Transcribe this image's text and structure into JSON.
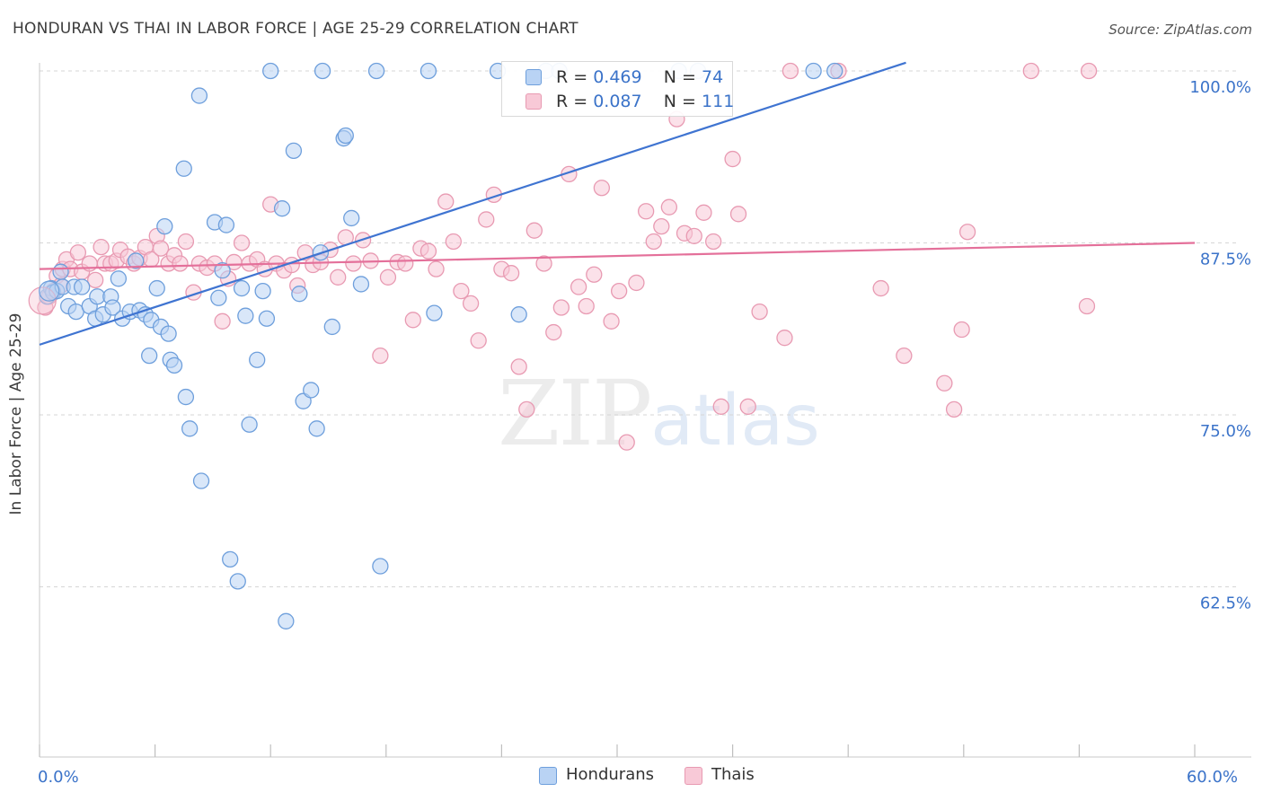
{
  "header": {
    "title": "HONDURAN VS THAI IN LABOR FORCE | AGE 25-29 CORRELATION CHART",
    "source": "Source: ZipAtlas.com"
  },
  "watermark": {
    "zip": "ZIP",
    "atlas": "atlas"
  },
  "legend": {
    "r_label": "R =",
    "n_label": "N =",
    "hondurans": {
      "r": "0.469",
      "n": "74"
    },
    "thais": {
      "r": "0.087",
      "n": "111"
    }
  },
  "bottom_legend": {
    "hondurans": "Hondurans",
    "thais": "Thais"
  },
  "colors": {
    "hondurans_fill": "#b9d3f4",
    "hondurans_stroke": "#6e9fdc",
    "hondurans_line": "#3f74d1",
    "thais_fill": "#f8c9d7",
    "thais_stroke": "#e89ab2",
    "thais_line": "#e4709a",
    "axis_label": "#3b73c9",
    "grid": "#d6d6d6"
  },
  "chart_data": {
    "type": "scatter",
    "title": "HONDURAN VS THAI IN LABOR FORCE | AGE 25-29 CORRELATION CHART",
    "xlabel": "",
    "ylabel": "In Labor Force | Age 25-29",
    "xlim": [
      0,
      60
    ],
    "ylim": [
      50.7,
      100.6
    ],
    "x_tick_labels": [
      {
        "value": 0,
        "label": "0.0%"
      },
      {
        "value": 60,
        "label": "60.0%"
      }
    ],
    "y_tick_labels": [
      {
        "value": 100,
        "label": "100.0%"
      },
      {
        "value": 87.5,
        "label": "87.5%"
      },
      {
        "value": 75,
        "label": "75.0%"
      },
      {
        "value": 62.5,
        "label": "62.5%"
      }
    ],
    "x_minor_ticks": [
      6,
      12,
      18,
      24,
      30,
      36,
      42,
      48,
      54
    ],
    "grid": "horizontal dashed",
    "legend_position": "top-center",
    "series": [
      {
        "name": "Hondurans",
        "r": 0.469,
        "n": 74,
        "trend": {
          "x": [
            0,
            45
          ],
          "y": [
            80.1,
            100.6
          ]
        },
        "points": [
          [
            0.4,
            83.6
          ],
          [
            0.6,
            84.2
          ],
          [
            0.7,
            83.9
          ],
          [
            0.9,
            84.0
          ],
          [
            1.1,
            85.4
          ],
          [
            1.2,
            84.3
          ],
          [
            1.5,
            82.9
          ],
          [
            1.8,
            84.3
          ],
          [
            1.9,
            82.5
          ],
          [
            2.2,
            84.3
          ],
          [
            2.6,
            82.9
          ],
          [
            2.9,
            82.0
          ],
          [
            3.0,
            83.6
          ],
          [
            3.3,
            82.3
          ],
          [
            3.7,
            83.6
          ],
          [
            3.8,
            82.8
          ],
          [
            4.1,
            84.9
          ],
          [
            4.3,
            82.0
          ],
          [
            4.7,
            82.5
          ],
          [
            5.0,
            86.2
          ],
          [
            5.2,
            82.6
          ],
          [
            5.5,
            82.3
          ],
          [
            5.7,
            79.3
          ],
          [
            5.8,
            81.9
          ],
          [
            6.1,
            84.2
          ],
          [
            6.3,
            81.4
          ],
          [
            6.5,
            88.7
          ],
          [
            6.7,
            80.9
          ],
          [
            6.8,
            79.0
          ],
          [
            7.0,
            78.6
          ],
          [
            7.5,
            92.9
          ],
          [
            7.6,
            76.3
          ],
          [
            7.8,
            74.0
          ],
          [
            8.3,
            98.2
          ],
          [
            8.4,
            70.2
          ],
          [
            9.1,
            89.0
          ],
          [
            9.3,
            83.5
          ],
          [
            9.5,
            85.5
          ],
          [
            9.7,
            88.8
          ],
          [
            9.9,
            64.5
          ],
          [
            10.3,
            62.9
          ],
          [
            10.5,
            84.2
          ],
          [
            10.7,
            82.2
          ],
          [
            10.9,
            74.3
          ],
          [
            11.3,
            79.0
          ],
          [
            11.6,
            84.0
          ],
          [
            11.8,
            82.0
          ],
          [
            12.0,
            100.0
          ],
          [
            12.6,
            90.0
          ],
          [
            12.8,
            60.0
          ],
          [
            13.2,
            94.2
          ],
          [
            13.5,
            83.8
          ],
          [
            13.7,
            76.0
          ],
          [
            14.1,
            76.8
          ],
          [
            14.4,
            74.0
          ],
          [
            14.6,
            86.8
          ],
          [
            14.7,
            100.0
          ],
          [
            15.2,
            81.4
          ],
          [
            15.8,
            95.1
          ],
          [
            15.9,
            95.3
          ],
          [
            16.2,
            89.3
          ],
          [
            16.7,
            84.5
          ],
          [
            17.5,
            100.0
          ],
          [
            17.7,
            64.0
          ],
          [
            20.2,
            100.0
          ],
          [
            20.5,
            82.4
          ],
          [
            23.8,
            100.0
          ],
          [
            24.9,
            82.3
          ],
          [
            26.3,
            100.0
          ],
          [
            27.0,
            100.0
          ],
          [
            33.2,
            100.0
          ],
          [
            34.2,
            100.0
          ],
          [
            40.2,
            100.0
          ],
          [
            41.3,
            100.0
          ]
        ]
      },
      {
        "name": "Thais",
        "r": 0.087,
        "n": 111,
        "trend": {
          "x": [
            0,
            60
          ],
          "y": [
            85.6,
            87.5
          ]
        },
        "points": [
          [
            0.3,
            82.8
          ],
          [
            0.5,
            83.6
          ],
          [
            0.7,
            84.0
          ],
          [
            0.9,
            85.1
          ],
          [
            1.1,
            84.4
          ],
          [
            1.2,
            85.6
          ],
          [
            1.4,
            86.3
          ],
          [
            1.6,
            85.6
          ],
          [
            2.0,
            86.8
          ],
          [
            2.2,
            85.4
          ],
          [
            2.6,
            86.0
          ],
          [
            2.9,
            84.8
          ],
          [
            3.2,
            87.2
          ],
          [
            3.4,
            86.0
          ],
          [
            3.7,
            86.0
          ],
          [
            4.0,
            86.2
          ],
          [
            4.2,
            87.0
          ],
          [
            4.6,
            86.5
          ],
          [
            4.9,
            86.0
          ],
          [
            5.2,
            86.4
          ],
          [
            5.5,
            87.2
          ],
          [
            5.8,
            86.3
          ],
          [
            6.1,
            88.0
          ],
          [
            6.3,
            87.1
          ],
          [
            6.7,
            86.0
          ],
          [
            7.0,
            86.6
          ],
          [
            7.3,
            86.0
          ],
          [
            7.6,
            87.6
          ],
          [
            8.0,
            83.9
          ],
          [
            8.3,
            86.0
          ],
          [
            8.7,
            85.7
          ],
          [
            9.1,
            86.0
          ],
          [
            9.5,
            81.8
          ],
          [
            9.8,
            84.9
          ],
          [
            10.1,
            86.1
          ],
          [
            10.5,
            87.5
          ],
          [
            10.9,
            86.0
          ],
          [
            11.3,
            86.3
          ],
          [
            11.7,
            85.6
          ],
          [
            12.0,
            90.3
          ],
          [
            12.3,
            86.0
          ],
          [
            12.7,
            85.5
          ],
          [
            13.1,
            85.9
          ],
          [
            13.4,
            84.4
          ],
          [
            13.8,
            86.8
          ],
          [
            14.2,
            85.9
          ],
          [
            14.6,
            86.1
          ],
          [
            15.1,
            87.0
          ],
          [
            15.5,
            85.0
          ],
          [
            15.9,
            87.9
          ],
          [
            16.3,
            86.0
          ],
          [
            16.8,
            87.7
          ],
          [
            17.2,
            86.2
          ],
          [
            17.7,
            79.3
          ],
          [
            18.1,
            85.0
          ],
          [
            18.6,
            86.1
          ],
          [
            19.0,
            86.0
          ],
          [
            19.4,
            81.9
          ],
          [
            19.8,
            87.1
          ],
          [
            20.2,
            86.9
          ],
          [
            20.6,
            85.6
          ],
          [
            21.1,
            90.5
          ],
          [
            21.5,
            87.6
          ],
          [
            21.9,
            84.0
          ],
          [
            22.4,
            83.1
          ],
          [
            22.8,
            80.4
          ],
          [
            23.2,
            89.2
          ],
          [
            23.6,
            91.0
          ],
          [
            24.0,
            85.6
          ],
          [
            24.5,
            85.3
          ],
          [
            24.9,
            78.5
          ],
          [
            25.3,
            75.4
          ],
          [
            25.7,
            88.4
          ],
          [
            26.2,
            86.0
          ],
          [
            26.7,
            81.0
          ],
          [
            27.1,
            82.8
          ],
          [
            27.5,
            92.5
          ],
          [
            28.0,
            84.3
          ],
          [
            28.4,
            82.9
          ],
          [
            28.8,
            85.2
          ],
          [
            29.2,
            91.5
          ],
          [
            29.7,
            81.8
          ],
          [
            30.1,
            84.0
          ],
          [
            30.5,
            73.0
          ],
          [
            31.0,
            84.6
          ],
          [
            31.5,
            89.8
          ],
          [
            31.9,
            87.6
          ],
          [
            32.3,
            88.7
          ],
          [
            32.7,
            90.1
          ],
          [
            33.1,
            96.5
          ],
          [
            33.5,
            88.2
          ],
          [
            34.0,
            88.0
          ],
          [
            34.5,
            89.7
          ],
          [
            35.0,
            87.6
          ],
          [
            35.4,
            75.6
          ],
          [
            36.0,
            93.6
          ],
          [
            36.3,
            89.6
          ],
          [
            36.8,
            75.6
          ],
          [
            37.4,
            82.5
          ],
          [
            38.7,
            80.6
          ],
          [
            39.0,
            100.0
          ],
          [
            41.5,
            100.0
          ],
          [
            43.7,
            84.2
          ],
          [
            44.9,
            79.3
          ],
          [
            47.0,
            77.3
          ],
          [
            47.5,
            75.4
          ],
          [
            47.9,
            81.2
          ],
          [
            48.2,
            88.3
          ],
          [
            51.5,
            100.0
          ],
          [
            54.5,
            100.0
          ],
          [
            54.4,
            82.9
          ]
        ]
      }
    ]
  }
}
